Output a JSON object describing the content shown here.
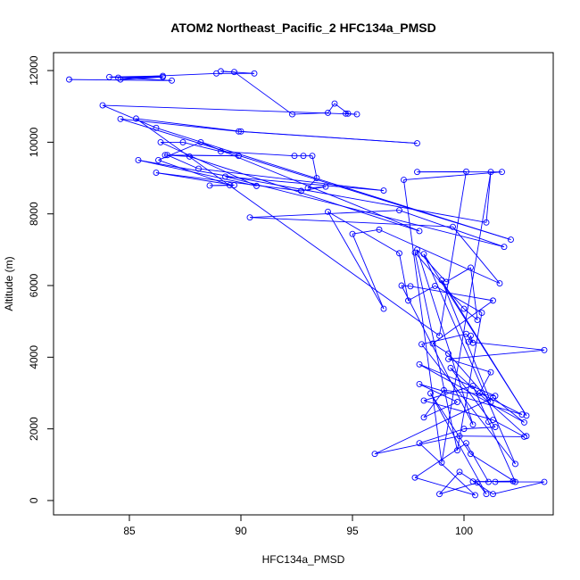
{
  "chart_data": {
    "type": "line",
    "title": "ATOM2 Northeast_Pacific_2 HFC134a_PMSD",
    "xlabel": "HFC134a_PMSD",
    "ylabel": "Altitude (m)",
    "xlim": [
      81.6,
      104.0
    ],
    "ylim": [
      -400,
      12500
    ],
    "xticks": [
      85,
      90,
      95,
      100
    ],
    "yticks": [
      0,
      2000,
      4000,
      6000,
      8000,
      10000,
      12000
    ],
    "grid": false,
    "legend": "none",
    "series_color": "#0000ff",
    "series": [
      {
        "points": [
          [
            82.3,
            11750
          ],
          [
            86.9,
            11720
          ],
          [
            84.1,
            11820
          ],
          [
            86.5,
            11850
          ],
          [
            84.6,
            11750
          ],
          [
            86.5,
            11820
          ],
          [
            84.5,
            11800
          ],
          [
            88.9,
            11920
          ],
          [
            90.6,
            11920
          ],
          [
            89.1,
            11980
          ],
          [
            89.7,
            11960
          ],
          [
            92.3,
            10780
          ],
          [
            93.9,
            10820
          ],
          [
            94.2,
            11080
          ],
          [
            94.8,
            10800
          ],
          [
            94.7,
            10800
          ],
          [
            95.2,
            10780
          ],
          [
            83.8,
            11030
          ],
          [
            86.2,
            10400
          ],
          [
            102.1,
            7280
          ],
          [
            84.6,
            10650
          ],
          [
            89.9,
            10300
          ],
          [
            97.9,
            9970
          ],
          [
            90.0,
            10300
          ],
          [
            85.3,
            10660
          ],
          [
            98.9,
            4600
          ],
          [
            100.1,
            9180
          ],
          [
            97.9,
            9170
          ],
          [
            101.7,
            9170
          ],
          [
            97.3,
            8950
          ],
          [
            99.0,
            1060
          ],
          [
            101.2,
            9170
          ],
          [
            101.0,
            7760
          ],
          [
            85.4,
            9500
          ],
          [
            90.7,
            8780
          ],
          [
            86.4,
            10000
          ],
          [
            87.4,
            10000
          ],
          [
            89.1,
            9740
          ],
          [
            92.4,
            9620
          ],
          [
            92.8,
            9620
          ],
          [
            93.2,
            9620
          ],
          [
            93.4,
            9000
          ],
          [
            93.0,
            8720
          ],
          [
            93.8,
            8760
          ],
          [
            92.7,
            8640
          ],
          [
            86.2,
            9150
          ],
          [
            89.7,
            8800
          ],
          [
            88.6,
            8790
          ],
          [
            89.5,
            8800
          ],
          [
            86.3,
            9500
          ],
          [
            88.2,
            10000
          ],
          [
            98.0,
            7520
          ],
          [
            87.7,
            9600
          ],
          [
            86.6,
            9640
          ],
          [
            89.9,
            9620
          ],
          [
            86.7,
            9640
          ],
          [
            88.1,
            9260
          ],
          [
            96.4,
            8650
          ],
          [
            89.3,
            9040
          ],
          [
            101.8,
            7080
          ],
          [
            97.1,
            8100
          ],
          [
            90.4,
            7900
          ],
          [
            99.5,
            7640
          ],
          [
            101.6,
            6060
          ],
          [
            96.2,
            7560
          ],
          [
            95.0,
            7440
          ],
          [
            96.4,
            5350
          ],
          [
            93.9,
            8060
          ],
          [
            97.1,
            6900
          ],
          [
            97.5,
            5580
          ],
          [
            98.7,
            5990
          ],
          [
            100.8,
            5240
          ],
          [
            99.7,
            1400
          ],
          [
            97.8,
            6920
          ],
          [
            100.0,
            5350
          ],
          [
            100.6,
            5040
          ],
          [
            100.3,
            6500
          ],
          [
            99.2,
            6100
          ],
          [
            97.9,
            7000
          ],
          [
            100.4,
            2120
          ],
          [
            97.2,
            6000
          ],
          [
            97.6,
            5980
          ],
          [
            101.3,
            5580
          ],
          [
            98.6,
            4380
          ],
          [
            99.3,
            4100
          ],
          [
            101.2,
            2750
          ],
          [
            99.0,
            6150
          ],
          [
            102.8,
            2370
          ],
          [
            98.2,
            6880
          ],
          [
            102.3,
            1020
          ],
          [
            98.1,
            4360
          ],
          [
            100.1,
            4650
          ],
          [
            100.4,
            4400
          ],
          [
            100.3,
            4600
          ],
          [
            100.2,
            4430
          ],
          [
            103.6,
            4200
          ],
          [
            99.3,
            3950
          ],
          [
            101.2,
            3580
          ],
          [
            100.7,
            3000
          ],
          [
            102.6,
            2400
          ],
          [
            98.0,
            3250
          ],
          [
            99.7,
            2750
          ],
          [
            98.2,
            2320
          ],
          [
            99.1,
            3080
          ],
          [
            101.4,
            2920
          ],
          [
            98.0,
            3800
          ],
          [
            102.7,
            2180
          ],
          [
            101.3,
            2870
          ],
          [
            96.0,
            1300
          ],
          [
            99.8,
            1800
          ],
          [
            102.7,
            1780
          ],
          [
            101.3,
            2250
          ],
          [
            98.2,
            2790
          ],
          [
            100.4,
            3200
          ],
          [
            101.1,
            2200
          ],
          [
            102.3,
            520
          ],
          [
            100.3,
            1300
          ],
          [
            98.5,
            2990
          ],
          [
            101.0,
            180
          ],
          [
            100.6,
            500
          ],
          [
            98.9,
            180
          ],
          [
            99.8,
            800
          ],
          [
            101.3,
            180
          ],
          [
            103.6,
            520
          ],
          [
            101.4,
            520
          ],
          [
            102.2,
            540
          ],
          [
            100.4,
            530
          ],
          [
            101.1,
            520
          ],
          [
            100.1,
            1600
          ],
          [
            97.8,
            640
          ],
          [
            100.5,
            150
          ],
          [
            98.0,
            1600
          ],
          [
            100.0,
            2000
          ],
          [
            101.4,
            2050
          ],
          [
            99.4,
            3700
          ],
          [
            102.8,
            1800
          ]
        ]
      }
    ]
  }
}
